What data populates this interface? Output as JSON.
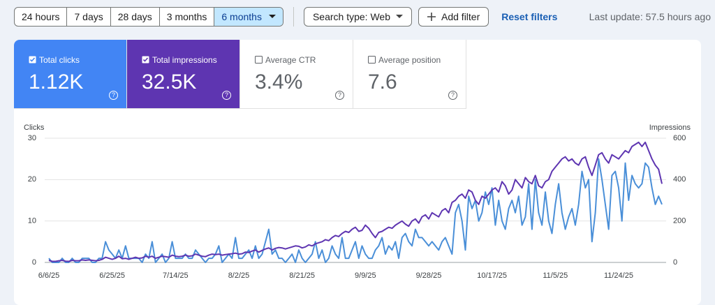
{
  "toolbar": {
    "date_ranges": [
      "24 hours",
      "7 days",
      "28 days",
      "3 months",
      "6 months"
    ],
    "selected_range": 4,
    "search_type": "Search type: Web",
    "add_filter": "Add filter",
    "reset_filters": "Reset filters",
    "last_update": "Last update: 57.5 hours ago"
  },
  "metrics": [
    {
      "label": "Total clicks",
      "value": "1.12K",
      "checked": true,
      "color": "#4285f4"
    },
    {
      "label": "Total impressions",
      "value": "32.5K",
      "checked": true,
      "color": "#5e35b1"
    },
    {
      "label": "Average CTR",
      "value": "3.4%",
      "checked": false,
      "color": "#ffffff"
    },
    {
      "label": "Average position",
      "value": "7.6",
      "checked": false,
      "color": "#ffffff"
    }
  ],
  "help_icon": "?",
  "chart_data": {
    "type": "line",
    "x": [
      "6/6/25",
      "6/7/25",
      "6/8/25",
      "6/9/25",
      "6/10/25",
      "6/11/25",
      "6/12/25",
      "6/13/25",
      "6/14/25",
      "6/15/25",
      "6/16/25",
      "6/17/25",
      "6/18/25",
      "6/19/25",
      "6/20/25",
      "6/21/25",
      "6/22/25",
      "6/23/25",
      "6/24/25",
      "6/25/25",
      "6/26/25",
      "6/27/25",
      "6/28/25",
      "6/29/25",
      "6/30/25",
      "7/1/25",
      "7/2/25",
      "7/3/25",
      "7/4/25",
      "7/5/25",
      "7/6/25",
      "7/7/25",
      "7/8/25",
      "7/9/25",
      "7/10/25",
      "7/11/25",
      "7/12/25",
      "7/13/25",
      "7/14/25",
      "7/15/25",
      "7/16/25",
      "7/17/25",
      "7/18/25",
      "7/19/25",
      "7/20/25",
      "7/21/25",
      "7/22/25",
      "7/23/25",
      "7/24/25",
      "7/25/25",
      "7/26/25",
      "7/27/25",
      "7/28/25",
      "7/29/25",
      "7/30/25",
      "7/31/25",
      "8/1/25",
      "8/2/25",
      "8/3/25",
      "8/4/25",
      "8/5/25",
      "8/6/25",
      "8/7/25",
      "8/8/25",
      "8/9/25",
      "8/10/25",
      "8/11/25",
      "8/12/25",
      "8/13/25",
      "8/14/25",
      "8/15/25",
      "8/16/25",
      "8/17/25",
      "8/18/25",
      "8/19/25",
      "8/20/25",
      "8/21/25",
      "8/22/25",
      "8/23/25",
      "8/24/25",
      "8/25/25",
      "8/26/25",
      "8/27/25",
      "8/28/25",
      "8/29/25",
      "8/30/25",
      "8/31/25",
      "9/1/25",
      "9/2/25",
      "9/3/25",
      "9/4/25",
      "9/5/25",
      "9/6/25",
      "9/7/25",
      "9/8/25",
      "9/9/25",
      "9/10/25",
      "9/11/25",
      "9/12/25",
      "9/13/25",
      "9/14/25",
      "9/15/25",
      "9/16/25",
      "9/17/25",
      "9/18/25",
      "9/19/25",
      "9/20/25",
      "9/21/25",
      "9/22/25",
      "9/23/25",
      "9/24/25",
      "9/25/25",
      "9/26/25",
      "9/27/25",
      "9/28/25",
      "9/29/25",
      "9/30/25",
      "10/1/25",
      "10/2/25",
      "10/3/25",
      "10/4/25",
      "10/5/25",
      "10/6/25",
      "10/7/25",
      "10/8/25",
      "10/9/25",
      "10/10/25",
      "10/11/25",
      "10/12/25",
      "10/13/25",
      "10/14/25",
      "10/15/25",
      "10/16/25",
      "10/17/25",
      "10/18/25",
      "10/19/25",
      "10/20/25",
      "10/21/25",
      "10/22/25",
      "10/23/25",
      "10/24/25",
      "10/25/25",
      "10/26/25",
      "10/27/25",
      "10/28/25",
      "10/29/25",
      "10/30/25",
      "10/31/25",
      "11/1/25",
      "11/2/25",
      "11/3/25",
      "11/4/25",
      "11/5/25",
      "11/6/25",
      "11/7/25",
      "11/8/25",
      "11/9/25",
      "11/10/25",
      "11/11/25",
      "11/12/25",
      "11/13/25",
      "11/14/25",
      "11/15/25",
      "11/16/25",
      "11/17/25",
      "11/18/25",
      "11/19/25",
      "11/20/25",
      "11/21/25",
      "11/22/25",
      "11/23/25",
      "11/24/25",
      "11/25/25",
      "11/26/25",
      "11/27/25",
      "11/28/25",
      "11/29/25",
      "11/30/25",
      "12/1/25",
      "12/2/25",
      "12/3/25",
      "12/4/25",
      "12/5/25",
      "12/6/25",
      "12/7/25"
    ],
    "xticks": [
      "6/6/25",
      "6/25/25",
      "7/14/25",
      "8/2/25",
      "8/21/25",
      "9/9/25",
      "9/28/25",
      "10/17/25",
      "11/5/25",
      "11/24/25"
    ],
    "series": [
      {
        "name": "Clicks",
        "color": "#4a8fd8",
        "values": [
          1,
          0,
          0,
          0,
          1,
          0,
          0,
          1,
          0,
          0,
          1,
          1,
          1,
          0,
          0,
          1,
          1,
          5,
          3,
          2,
          1,
          3,
          1,
          4,
          1,
          1,
          1,
          1,
          0,
          2,
          1,
          5,
          0,
          1,
          2,
          0,
          1,
          5,
          1,
          1,
          1,
          2,
          1,
          1,
          3,
          2,
          1,
          0,
          1,
          1,
          2,
          4,
          0,
          1,
          2,
          1,
          6,
          1,
          1,
          2,
          3,
          1,
          4,
          1,
          2,
          5,
          8,
          2,
          3,
          1,
          1,
          0,
          1,
          2,
          0,
          3,
          1,
          0,
          1,
          2,
          5,
          1,
          3,
          0,
          1,
          4,
          2,
          1,
          6,
          1,
          1,
          3,
          5,
          1,
          4,
          2,
          1,
          1,
          3,
          4,
          6,
          2,
          4,
          3,
          5,
          1,
          6,
          7,
          5,
          4,
          8,
          6,
          6,
          5,
          4,
          5,
          4,
          3,
          5,
          6,
          4,
          2,
          12,
          14,
          10,
          3,
          16,
          13,
          15,
          10,
          12,
          17,
          14,
          18,
          9,
          15,
          10,
          8,
          13,
          15,
          12,
          16,
          9,
          11,
          19,
          8,
          20,
          12,
          9,
          17,
          10,
          7,
          14,
          19,
          12,
          8,
          11,
          13,
          9,
          14,
          22,
          18,
          20,
          5,
          12,
          25,
          20,
          14,
          8,
          21,
          22,
          18,
          10,
          24,
          15,
          21,
          19,
          18,
          19,
          24,
          23,
          18,
          14,
          16,
          14
        ]
      },
      {
        "name": "Impressions",
        "color": "#5e35b1",
        "axis": "y2",
        "values": [
          10,
          5,
          5,
          8,
          10,
          6,
          5,
          10,
          8,
          8,
          12,
          10,
          12,
          10,
          8,
          10,
          15,
          25,
          20,
          15,
          20,
          30,
          18,
          20,
          15,
          20,
          25,
          20,
          22,
          30,
          25,
          30,
          20,
          25,
          30,
          28,
          25,
          35,
          30,
          28,
          30,
          35,
          30,
          32,
          40,
          35,
          30,
          28,
          35,
          40,
          38,
          40,
          35,
          38,
          40,
          42,
          45,
          40,
          42,
          50,
          48,
          55,
          60,
          50,
          58,
          65,
          70,
          60,
          68,
          72,
          70,
          65,
          70,
          75,
          80,
          78,
          70,
          75,
          85,
          80,
          90,
          95,
          100,
          110,
          105,
          120,
          130,
          125,
          140,
          150,
          145,
          160,
          170,
          150,
          155,
          180,
          165,
          140,
          120,
          145,
          150,
          160,
          170,
          165,
          180,
          190,
          200,
          185,
          175,
          200,
          210,
          190,
          220,
          230,
          210,
          240,
          230,
          220,
          250,
          260,
          240,
          290,
          300,
          320,
          330,
          310,
          350,
          340,
          300,
          280,
          320,
          310,
          330,
          350,
          360,
          340,
          390,
          370,
          330,
          350,
          400,
          380,
          360,
          410,
          390,
          380,
          420,
          370,
          360,
          390,
          400,
          440,
          460,
          480,
          500,
          510,
          490,
          500,
          480,
          470,
          500,
          510,
          460,
          420,
          470,
          520,
          530,
          500,
          480,
          520,
          510,
          500,
          520,
          540,
          530,
          560,
          570,
          580,
          560,
          580,
          540,
          500,
          470,
          450,
          380
        ]
      }
    ],
    "ylim": [
      0,
      30
    ],
    "yticks": [
      0,
      10,
      20,
      30
    ],
    "y2lim": [
      0,
      600
    ],
    "y2ticks": [
      0,
      200,
      400,
      600
    ],
    "grid": true
  }
}
